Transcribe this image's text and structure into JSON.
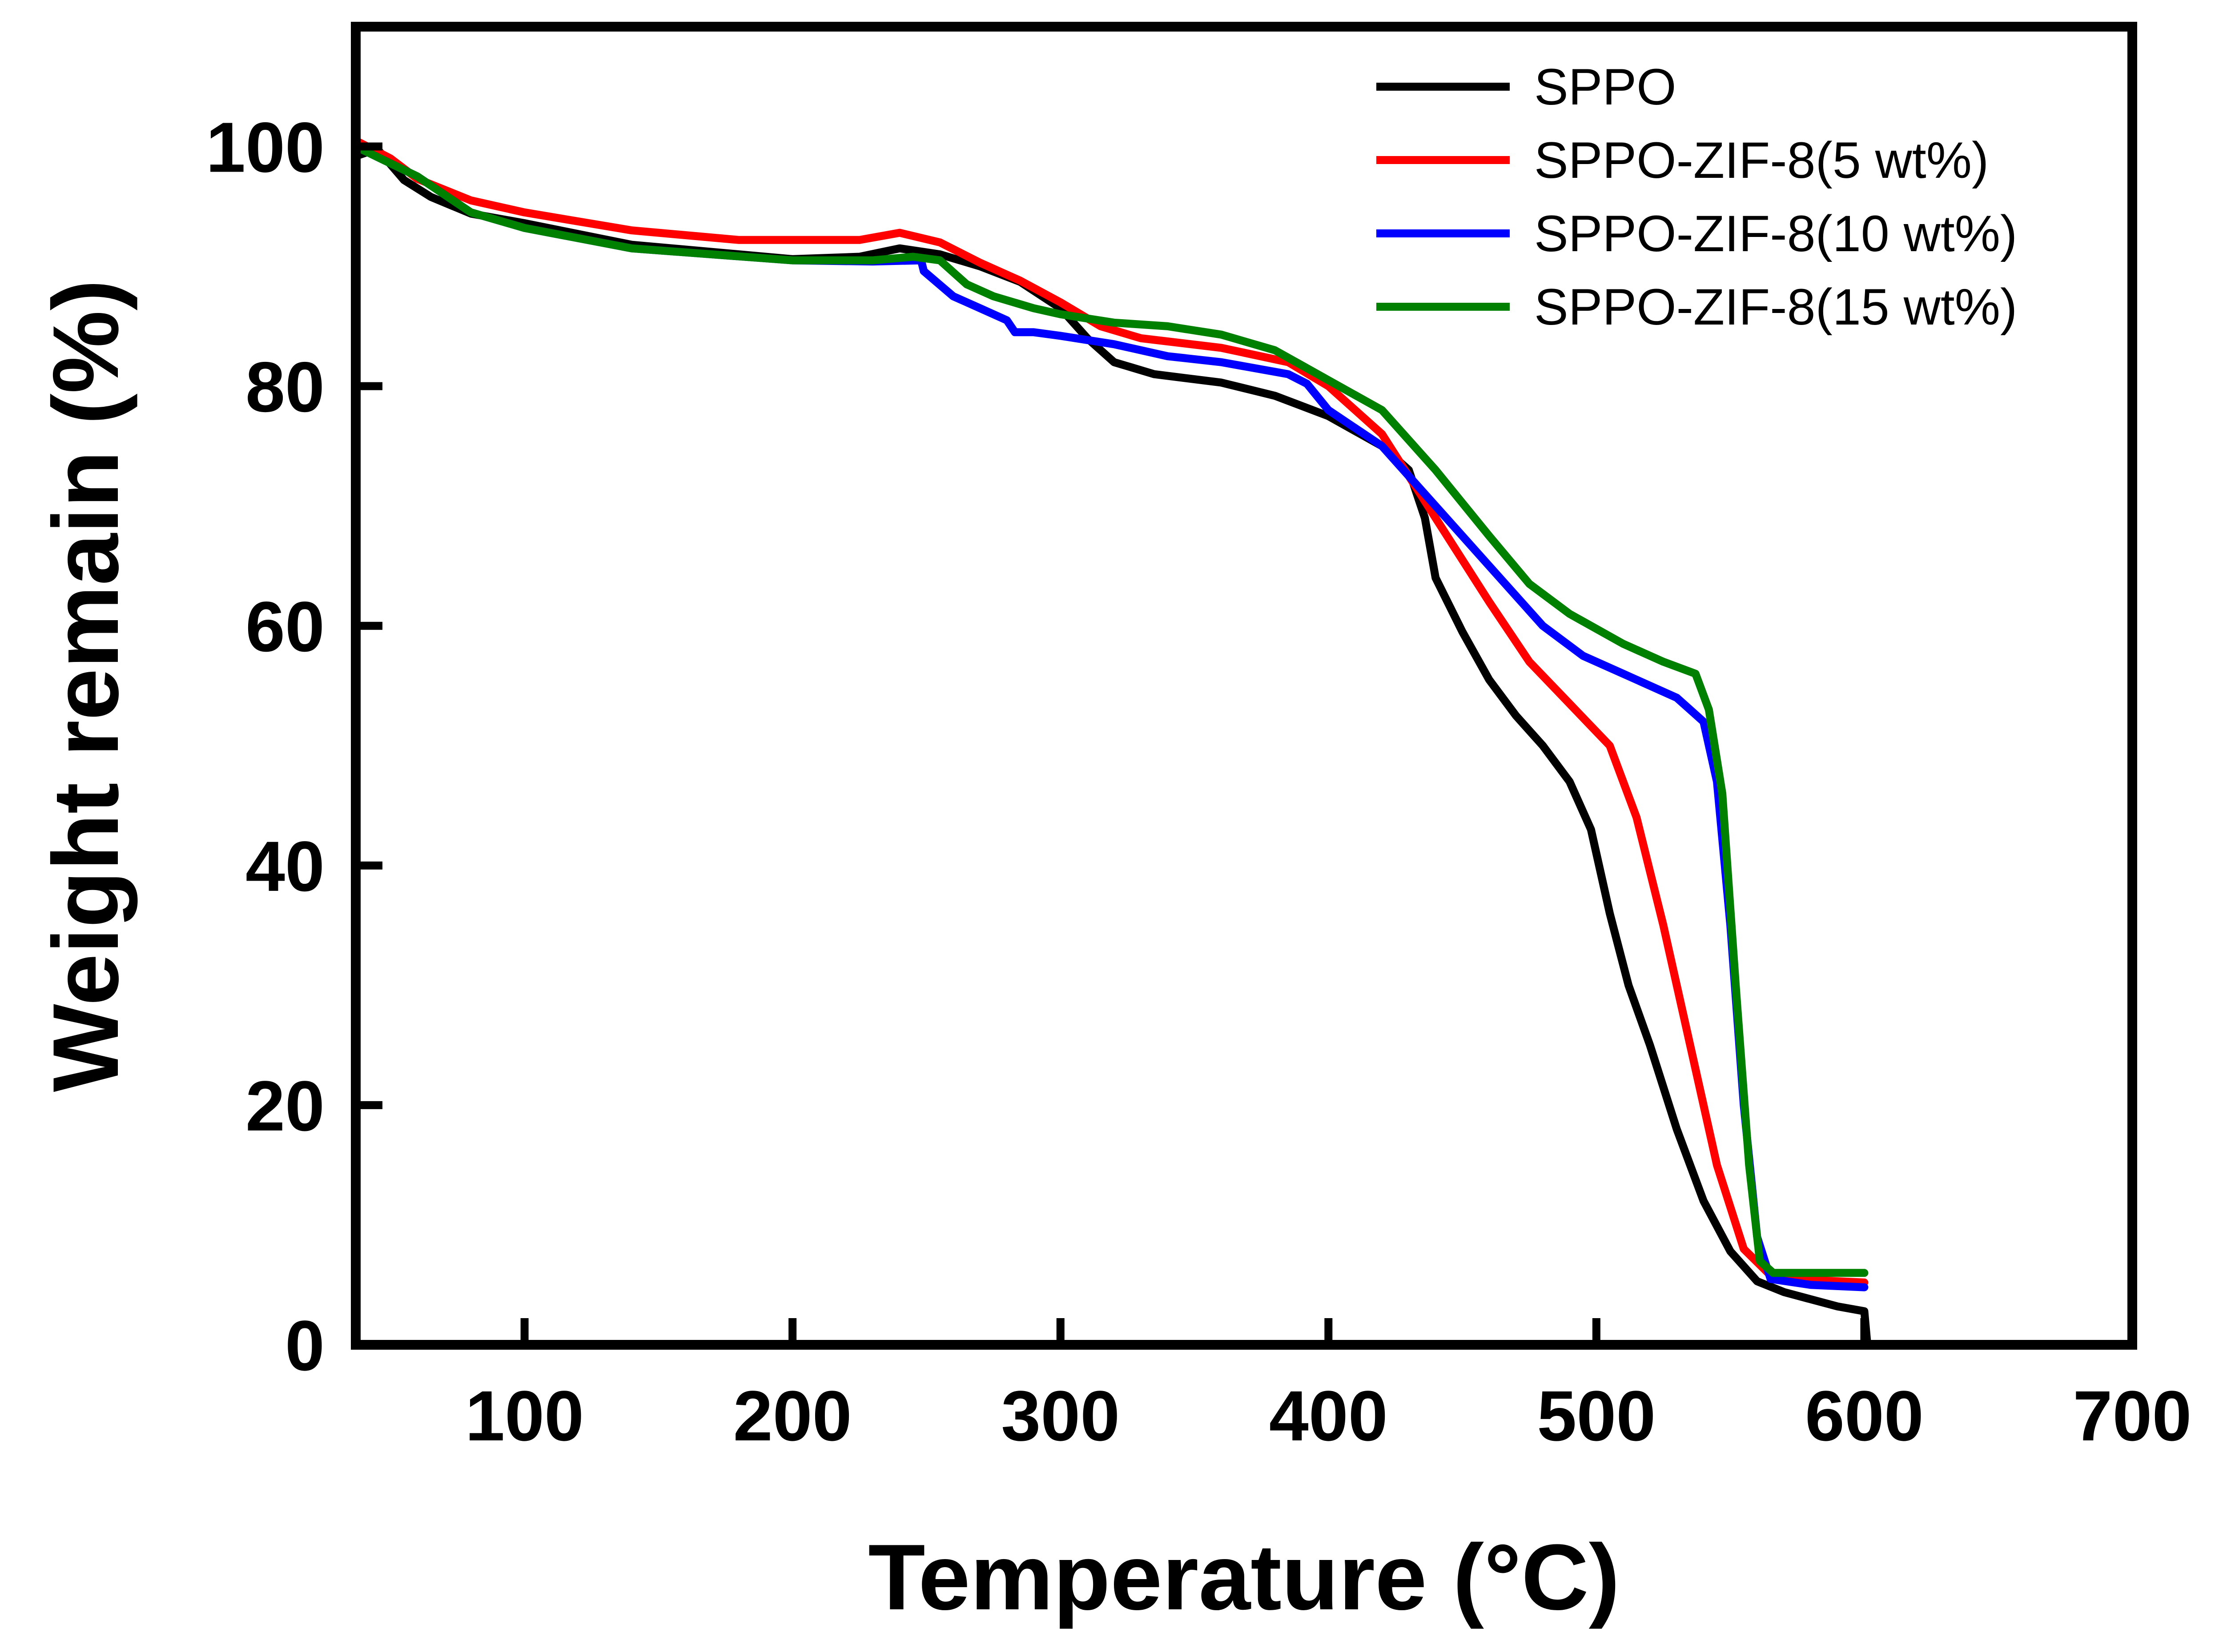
{
  "chart_data": {
    "type": "line",
    "title": "",
    "xlabel": "Temperature (°C)",
    "ylabel": "Weight remain (%)",
    "xlim": [
      37,
      700
    ],
    "ylim": [
      0,
      110
    ],
    "xticks": [
      100,
      200,
      300,
      400,
      500,
      600,
      700
    ],
    "yticks": [
      0,
      20,
      40,
      60,
      80,
      100
    ],
    "grid": false,
    "legend_position": "top-right",
    "series": [
      {
        "name": "SPPO",
        "color": "#000000",
        "points": [
          [
            37,
            99.2
          ],
          [
            45,
            99.8
          ],
          [
            55,
            97.2
          ],
          [
            65,
            95.8
          ],
          [
            80,
            94.4
          ],
          [
            100,
            93.6
          ],
          [
            140,
            91.8
          ],
          [
            200,
            90.6
          ],
          [
            225,
            90.8
          ],
          [
            240,
            91.5
          ],
          [
            255,
            91.0
          ],
          [
            270,
            90.0
          ],
          [
            285,
            88.7
          ],
          [
            300,
            86.5
          ],
          [
            310,
            84.0
          ],
          [
            320,
            82.0
          ],
          [
            335,
            81.0
          ],
          [
            360,
            80.3
          ],
          [
            380,
            79.2
          ],
          [
            400,
            77.5
          ],
          [
            420,
            75.0
          ],
          [
            430,
            73.0
          ],
          [
            436,
            69.0
          ],
          [
            440,
            64.0
          ],
          [
            450,
            59.5
          ],
          [
            460,
            55.5
          ],
          [
            470,
            52.5
          ],
          [
            480,
            50.0
          ],
          [
            490,
            47.0
          ],
          [
            498,
            43.0
          ],
          [
            505,
            36.0
          ],
          [
            512,
            30.0
          ],
          [
            520,
            25.0
          ],
          [
            530,
            18.0
          ],
          [
            540,
            12.0
          ],
          [
            550,
            7.8
          ],
          [
            560,
            5.3
          ],
          [
            570,
            4.4
          ],
          [
            580,
            3.8
          ],
          [
            590,
            3.2
          ],
          [
            600,
            2.8
          ],
          [
            601,
            0.3
          ]
        ]
      },
      {
        "name": "SPPO-ZIF-8(5 wt%)",
        "color": "#ff0000",
        "points": [
          [
            37,
            100.5
          ],
          [
            50,
            99.0
          ],
          [
            60,
            97.3
          ],
          [
            80,
            95.5
          ],
          [
            100,
            94.5
          ],
          [
            140,
            93.0
          ],
          [
            180,
            92.2
          ],
          [
            225,
            92.2
          ],
          [
            240,
            92.8
          ],
          [
            255,
            92.0
          ],
          [
            270,
            90.3
          ],
          [
            285,
            88.8
          ],
          [
            300,
            87.0
          ],
          [
            315,
            85.0
          ],
          [
            330,
            84.0
          ],
          [
            360,
            83.2
          ],
          [
            385,
            82.0
          ],
          [
            400,
            80.0
          ],
          [
            420,
            76.0
          ],
          [
            440,
            69.0
          ],
          [
            460,
            62.0
          ],
          [
            475,
            57.0
          ],
          [
            490,
            53.5
          ],
          [
            505,
            50.0
          ],
          [
            515,
            44.0
          ],
          [
            525,
            35.0
          ],
          [
            535,
            25.0
          ],
          [
            545,
            15.0
          ],
          [
            555,
            8.0
          ],
          [
            565,
            5.8
          ],
          [
            580,
            5.4
          ],
          [
            600,
            5.2
          ]
        ]
      },
      {
        "name": "SPPO-ZIF-8(10 wt%)",
        "color": "#0000ff",
        "points": [
          [
            37,
            100.0
          ],
          [
            60,
            97.5
          ],
          [
            80,
            94.5
          ],
          [
            100,
            93.2
          ],
          [
            140,
            91.5
          ],
          [
            200,
            90.5
          ],
          [
            230,
            90.4
          ],
          [
            248,
            90.5
          ],
          [
            249,
            89.6
          ],
          [
            260,
            87.5
          ],
          [
            270,
            86.5
          ],
          [
            280,
            85.5
          ],
          [
            283,
            84.5
          ],
          [
            290,
            84.5
          ],
          [
            300,
            84.2
          ],
          [
            320,
            83.5
          ],
          [
            340,
            82.5
          ],
          [
            360,
            82.0
          ],
          [
            385,
            81.0
          ],
          [
            392,
            80.2
          ],
          [
            400,
            78.0
          ],
          [
            420,
            75.0
          ],
          [
            440,
            70.0
          ],
          [
            460,
            65.0
          ],
          [
            480,
            60.0
          ],
          [
            495,
            57.5
          ],
          [
            510,
            56.0
          ],
          [
            530,
            54.0
          ],
          [
            540,
            52.0
          ],
          [
            545,
            47.0
          ],
          [
            550,
            35.0
          ],
          [
            555,
            20.0
          ],
          [
            560,
            9.0
          ],
          [
            565,
            5.5
          ],
          [
            580,
            5.0
          ],
          [
            600,
            4.8
          ]
        ]
      },
      {
        "name": "SPPO-ZIF-8(15 wt%)",
        "color": "#008000",
        "points": [
          [
            37,
            100.0
          ],
          [
            60,
            97.5
          ],
          [
            80,
            94.5
          ],
          [
            100,
            93.2
          ],
          [
            140,
            91.5
          ],
          [
            200,
            90.5
          ],
          [
            230,
            90.5
          ],
          [
            245,
            90.8
          ],
          [
            255,
            90.5
          ],
          [
            265,
            88.5
          ],
          [
            275,
            87.5
          ],
          [
            290,
            86.5
          ],
          [
            300,
            86.0
          ],
          [
            320,
            85.3
          ],
          [
            340,
            85.0
          ],
          [
            360,
            84.3
          ],
          [
            380,
            83.0
          ],
          [
            400,
            80.5
          ],
          [
            420,
            78.0
          ],
          [
            440,
            73.0
          ],
          [
            460,
            67.5
          ],
          [
            475,
            63.5
          ],
          [
            490,
            61.0
          ],
          [
            510,
            58.5
          ],
          [
            525,
            57.0
          ],
          [
            537,
            56.0
          ],
          [
            542,
            53.0
          ],
          [
            547,
            46.0
          ],
          [
            552,
            30.0
          ],
          [
            557,
            15.0
          ],
          [
            561,
            7.0
          ],
          [
            566,
            6.0
          ],
          [
            580,
            6.0
          ],
          [
            600,
            6.0
          ]
        ]
      }
    ]
  }
}
